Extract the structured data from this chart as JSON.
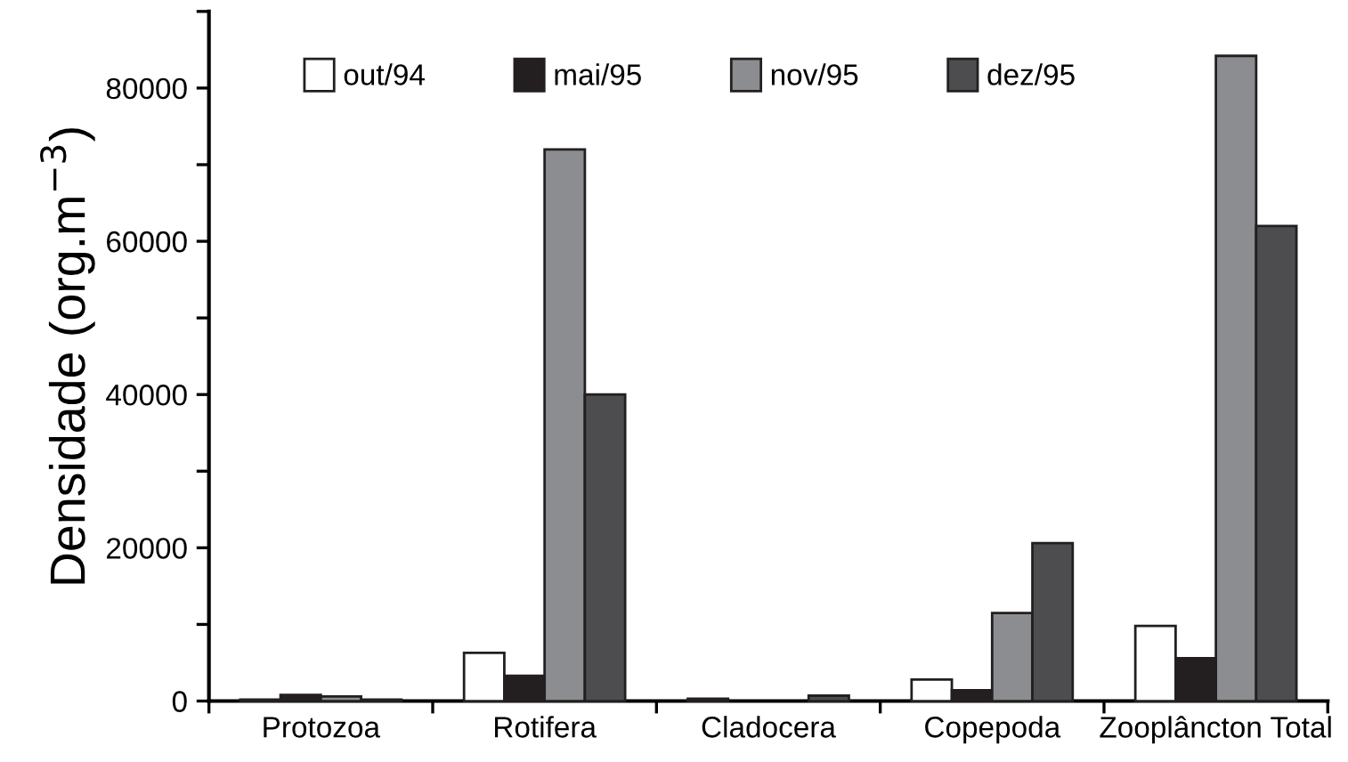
{
  "chart_data": {
    "type": "bar",
    "ylabel": "Densidade (org.m$^{−3}$)",
    "categories": [
      "Protozoa",
      "Rotifera",
      "Cladocera",
      "Copepoda",
      "Zooplâncton Total"
    ],
    "series": [
      {
        "name": "out/94",
        "color": "#ffffff",
        "values": [
          200,
          6300,
          300,
          2800,
          9800
        ]
      },
      {
        "name": "mai/95",
        "color": "#231f20",
        "values": [
          800,
          3300,
          null,
          1400,
          5600
        ]
      },
      {
        "name": "nov/95",
        "color": "#8c8d90",
        "values": [
          600,
          72000,
          null,
          11500,
          84200
        ]
      },
      {
        "name": "dez/95",
        "color": "#4d4d4f",
        "values": [
          200,
          40000,
          700,
          20600,
          62000
        ]
      }
    ],
    "ylim": [
      0,
      90000
    ],
    "yticks": [
      0,
      {
        "value": 10000,
        "label": null
      },
      20000,
      {
        "value": 30000,
        "label": null
      },
      40000,
      {
        "value": 50000,
        "label": null
      },
      60000,
      {
        "value": 70000,
        "label": null
      },
      80000,
      {
        "value": 90000,
        "label": null
      }
    ],
    "legend": "top",
    "grid": false
  }
}
